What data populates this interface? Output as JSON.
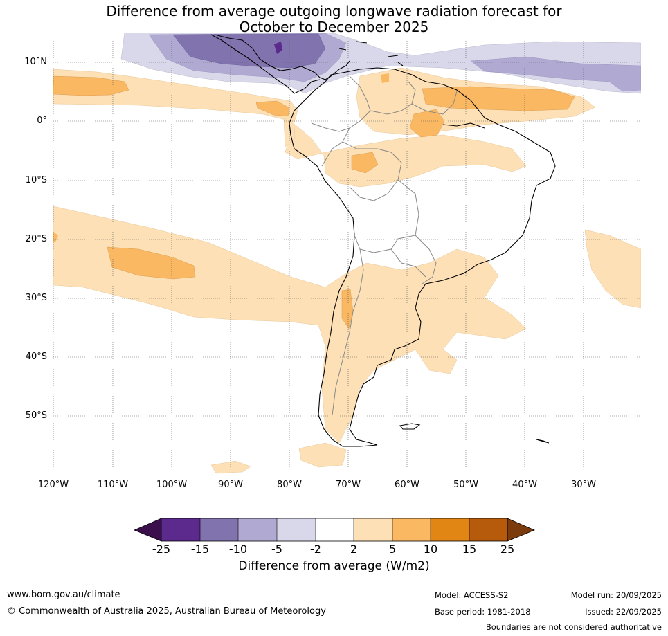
{
  "title": {
    "line1": "Difference from average outgoing longwave radiation forecast for",
    "line2": "October to December 2025"
  },
  "map": {
    "lat_ticks": [
      "10°N",
      "0°",
      "10°S",
      "20°S",
      "30°S",
      "40°S",
      "50°S"
    ],
    "lon_ticks": [
      "120°W",
      "110°W",
      "100°W",
      "90°W",
      "80°W",
      "70°W",
      "60°W",
      "50°W",
      "40°W",
      "30°W"
    ],
    "colors": {
      "neg25": "#3b0f4c",
      "neg15": "#5b2a8c",
      "neg10": "#8173ad",
      "neg5": "#b0a9d1",
      "neg2": "#d8d8ea",
      "zero": "#ffffff",
      "pos2": "#fde0b5",
      "pos5": "#fbb862",
      "pos10": "#e18515",
      "pos15": "#b65a0b",
      "pos25": "#7b3b0c"
    }
  },
  "colorbar": {
    "labels": [
      "-25",
      "-15",
      "-10",
      "-5",
      "-2",
      "2",
      "5",
      "10",
      "15",
      "25"
    ],
    "title": "Difference from average (W/m2)"
  },
  "footer": {
    "website": "www.bom.gov.au/climate",
    "copyright": "© Commonwealth of Australia 2025, Australian Bureau of Meteorology",
    "model": "Model: ACCESS-S2",
    "base_period": "Base period: 1981-2018",
    "model_run": "Model run: 20/09/2025",
    "issued": "Issued: 22/09/2025",
    "disclaimer": "Boundaries are not considered authoritative"
  }
}
